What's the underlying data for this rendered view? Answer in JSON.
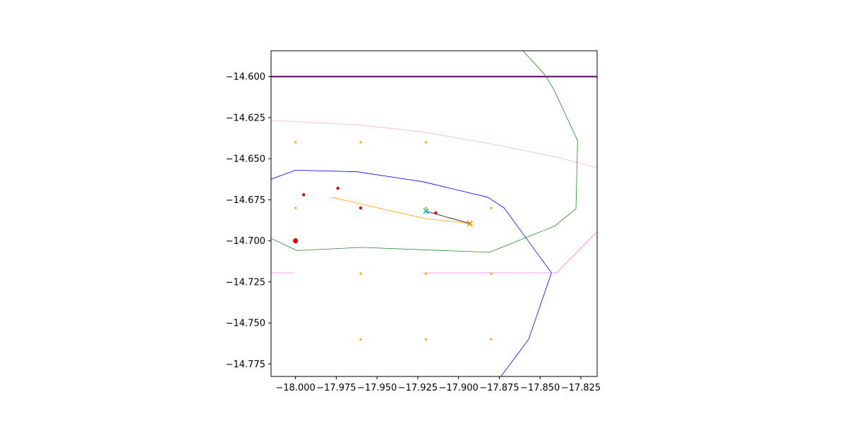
{
  "chart_data": {
    "type": "line",
    "title": "",
    "xlabel": "",
    "ylabel": "",
    "xlim": [
      -18.015,
      -17.815
    ],
    "ylim": [
      -14.7826,
      -14.5843
    ],
    "grid": false,
    "legend": "none",
    "x_ticks": [
      {
        "value": -18.0,
        "label": "−18.000"
      },
      {
        "value": -17.975,
        "label": "−17.975"
      },
      {
        "value": -17.95,
        "label": "−17.950"
      },
      {
        "value": -17.925,
        "label": "−17.925"
      },
      {
        "value": -17.9,
        "label": "−17.900"
      },
      {
        "value": -17.875,
        "label": "−17.875"
      },
      {
        "value": -17.85,
        "label": "−17.850"
      },
      {
        "value": -17.825,
        "label": "−17.825"
      }
    ],
    "y_ticks": [
      {
        "value": -14.6,
        "label": "−14.600"
      },
      {
        "value": -14.625,
        "label": "−14.625"
      },
      {
        "value": -14.65,
        "label": "−14.650"
      },
      {
        "value": -14.675,
        "label": "−14.675"
      },
      {
        "value": -14.7,
        "label": "−14.700"
      },
      {
        "value": -14.725,
        "label": "−14.725"
      },
      {
        "value": -14.75,
        "label": "−14.750"
      },
      {
        "value": -14.775,
        "label": "−14.775"
      }
    ],
    "lines": [
      {
        "id": "purple-line",
        "color": "#4b0055",
        "width": 2,
        "x": [
          -18.015,
          -17.815
        ],
        "y": [
          -14.6,
          -14.6
        ]
      },
      {
        "id": "pink-curve",
        "color": "#ffb6c1",
        "width": 0.8,
        "x": [
          -18.015,
          -17.96,
          -17.92,
          -17.88,
          -17.84,
          -17.815
        ],
        "y": [
          -14.6268,
          -14.6295,
          -14.634,
          -14.641,
          -14.649,
          -14.6555
        ]
      },
      {
        "id": "green-boundary",
        "color": "#228b22",
        "width": 0.8,
        "x": [
          -17.8605,
          -17.847,
          -17.8415,
          -17.827,
          -17.828,
          -17.841,
          -17.881,
          -17.96,
          -17.999,
          -18.015
        ],
        "y": [
          -14.5843,
          -14.599,
          -14.608,
          -14.639,
          -14.6805,
          -14.691,
          -14.707,
          -14.704,
          -14.706,
          -14.6985
        ]
      },
      {
        "id": "blue-boundary",
        "color": "#0000ff",
        "width": 0.8,
        "x": [
          -18.015,
          -18.0,
          -17.962,
          -17.922,
          -17.882,
          -17.872,
          -17.843,
          -17.857,
          -17.874
        ],
        "y": [
          -14.6625,
          -14.657,
          -14.658,
          -14.664,
          -14.6735,
          -14.68,
          -14.7195,
          -14.76,
          -14.7826
        ]
      },
      {
        "id": "magenta-line-left",
        "color": "#ff77ff",
        "width": 0.8,
        "x": [
          -18.015,
          -18.001
        ],
        "y": [
          -14.7195,
          -14.7195
        ]
      },
      {
        "id": "magenta-line-right",
        "color": "#ff77ff",
        "width": 0.8,
        "x": [
          -17.922,
          -17.84,
          -17.815
        ],
        "y": [
          -14.7195,
          -14.7195,
          -14.6945
        ]
      },
      {
        "id": "orange-track",
        "color": "#ffa500",
        "width": 0.8,
        "x": [
          -17.978,
          -17.945,
          -17.92,
          -17.893
        ],
        "y": [
          -14.6735,
          -14.681,
          -14.6865,
          -14.6895
        ]
      },
      {
        "id": "black-link",
        "color": "#000000",
        "width": 0.8,
        "x": [
          -17.92,
          -17.893
        ],
        "y": [
          -14.682,
          -14.6895
        ]
      }
    ],
    "points": [
      {
        "id": "grid-point",
        "color": "#ffb040",
        "r": 1.8,
        "x": -18.0,
        "y": -14.64
      },
      {
        "id": "grid-point",
        "color": "#ffb040",
        "r": 1.8,
        "x": -17.96,
        "y": -14.64
      },
      {
        "id": "grid-point",
        "color": "#ffb040",
        "r": 1.8,
        "x": -17.92,
        "y": -14.64
      },
      {
        "id": "grid-point",
        "color": "#ffb040",
        "r": 1.8,
        "x": -18.0,
        "y": -14.68
      },
      {
        "id": "grid-point",
        "color": "#ffb040",
        "r": 1.8,
        "x": -17.96,
        "y": -14.68
      },
      {
        "id": "grid-point",
        "color": "#ffb040",
        "r": 1.8,
        "x": -17.92,
        "y": -14.68
      },
      {
        "id": "grid-point",
        "color": "#ffb040",
        "r": 1.8,
        "x": -17.88,
        "y": -14.68
      },
      {
        "id": "grid-point",
        "color": "#ffb040",
        "r": 1.8,
        "x": -17.96,
        "y": -14.72
      },
      {
        "id": "grid-point",
        "color": "#ffb040",
        "r": 1.8,
        "x": -17.92,
        "y": -14.72
      },
      {
        "id": "grid-point",
        "color": "#ffb040",
        "r": 1.8,
        "x": -17.88,
        "y": -14.72
      },
      {
        "id": "grid-point",
        "color": "#ffb040",
        "r": 1.8,
        "x": -17.96,
        "y": -14.76
      },
      {
        "id": "grid-point",
        "color": "#ffb040",
        "r": 1.8,
        "x": -17.92,
        "y": -14.76
      },
      {
        "id": "grid-point",
        "color": "#ffb040",
        "r": 1.8,
        "x": -17.88,
        "y": -14.76
      },
      {
        "id": "red-point",
        "color": "#dd0000",
        "r": 2.2,
        "x": -17.995,
        "y": -14.672
      },
      {
        "id": "red-point",
        "color": "#dd0000",
        "r": 2.2,
        "x": -17.974,
        "y": -14.668
      },
      {
        "id": "red-point",
        "color": "#dd0000",
        "r": 2.2,
        "x": -17.96,
        "y": -14.68
      },
      {
        "id": "red-point",
        "color": "#dd0000",
        "r": 2.2,
        "x": -17.914,
        "y": -14.683
      },
      {
        "id": "red-point",
        "color": "#dd0000",
        "r": 3.6,
        "x": -18.0,
        "y": -14.7
      }
    ],
    "markers": [
      {
        "id": "cyan-x-marker",
        "color": "#17becf",
        "x": -17.92,
        "y": -14.682
      },
      {
        "id": "orange-x-marker",
        "color": "#dd9500",
        "x": -17.893,
        "y": -14.6895
      }
    ]
  }
}
